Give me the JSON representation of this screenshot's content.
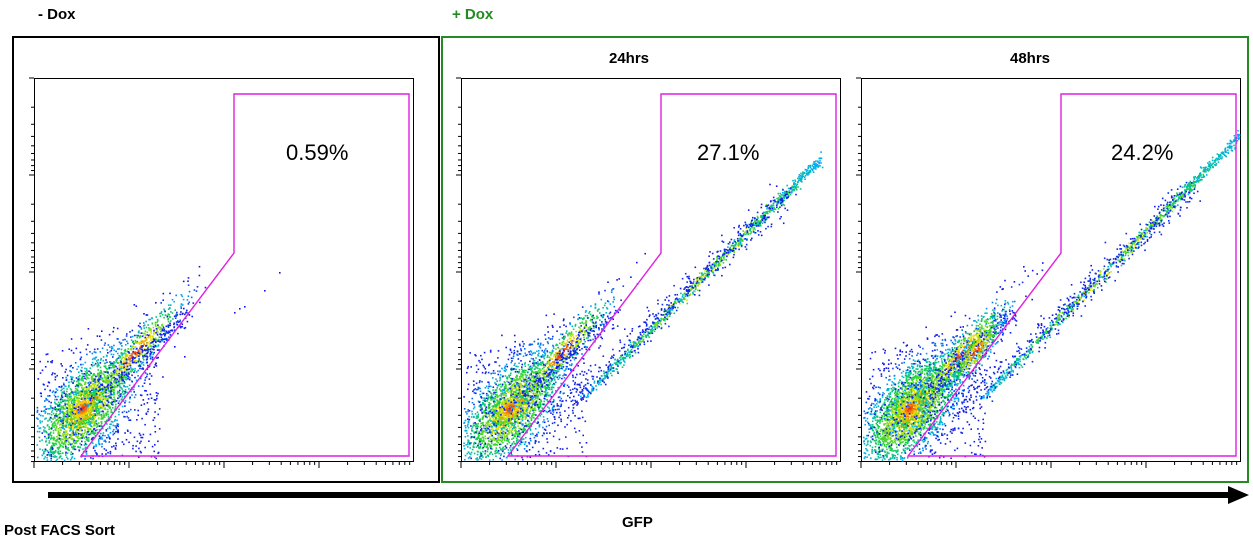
{
  "headers": {
    "left": "- Dox",
    "right": "+ Dox"
  },
  "x_axis_caption": "GFP",
  "footer": "Post FACS Sort",
  "colors": {
    "right_group": "#228b22",
    "gate": "#e01fe0",
    "frame": "#000000"
  },
  "chart_data": [
    {
      "type": "scatter",
      "subtype": "flow-cytometry density plot",
      "title": "",
      "gate_percent_label": "0.59%",
      "gate_fraction": 0.0059,
      "density_colormap": [
        "blue",
        "cyan",
        "green",
        "yellow",
        "red"
      ]
    },
    {
      "type": "scatter",
      "subtype": "flow-cytometry density plot",
      "title": "24hrs",
      "gate_percent_label": "27.1%",
      "gate_fraction": 0.271,
      "density_colormap": [
        "blue",
        "cyan",
        "green",
        "yellow",
        "red"
      ]
    },
    {
      "type": "scatter",
      "subtype": "flow-cytometry density plot",
      "title": "48hrs",
      "gate_percent_label": "24.2%",
      "gate_fraction": 0.242,
      "density_colormap": [
        "blue",
        "cyan",
        "green",
        "yellow",
        "red"
      ]
    }
  ]
}
